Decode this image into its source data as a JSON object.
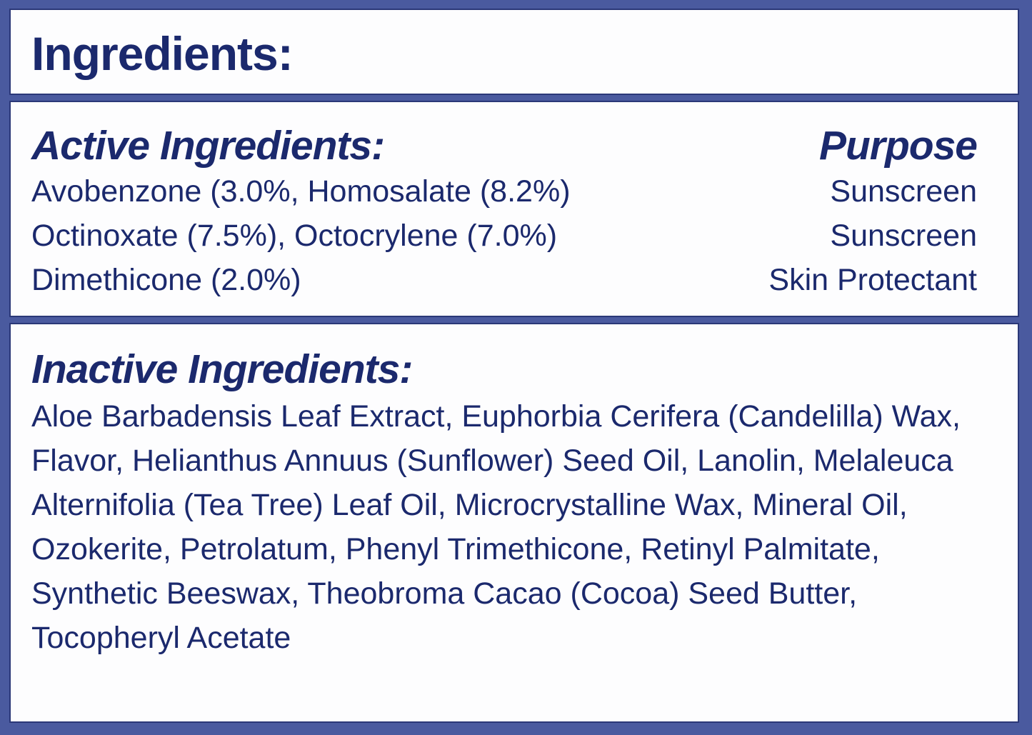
{
  "colors": {
    "frame": "#4a5a9f",
    "box_bg": "#fdfdfe",
    "box_border": "#2b3878",
    "text": "#1b296d"
  },
  "header": {
    "title": "Ingredients:"
  },
  "active_section": {
    "heading": "Active Ingredients:",
    "purpose_heading": "Purpose",
    "rows": [
      {
        "name": "Avobenzone (3.0%, Homosalate (8.2%)",
        "purpose": "Sunscreen"
      },
      {
        "name": "Octinoxate (7.5%), Octocrylene (7.0%)",
        "purpose": "Sunscreen"
      },
      {
        "name": "Dimethicone (2.0%)",
        "purpose": "Skin Protectant"
      }
    ]
  },
  "inactive_section": {
    "heading": "Inactive Ingredients:",
    "text": "Aloe Barbadensis Leaf Extract, Euphorbia Cerifera (Candelilla) Wax, Flavor, Helianthus Annuus (Sunflower) Seed Oil, Lanolin, Melaleuca Alternifolia (Tea Tree) Leaf Oil, Microcrystalline Wax, Mineral Oil, Ozokerite, Petrolatum, Phenyl Trimethicone, Retinyl Palmitate, Synthetic Beeswax, Theobroma Cacao (Cocoa) Seed Butter, Tocopheryl Acetate"
  }
}
